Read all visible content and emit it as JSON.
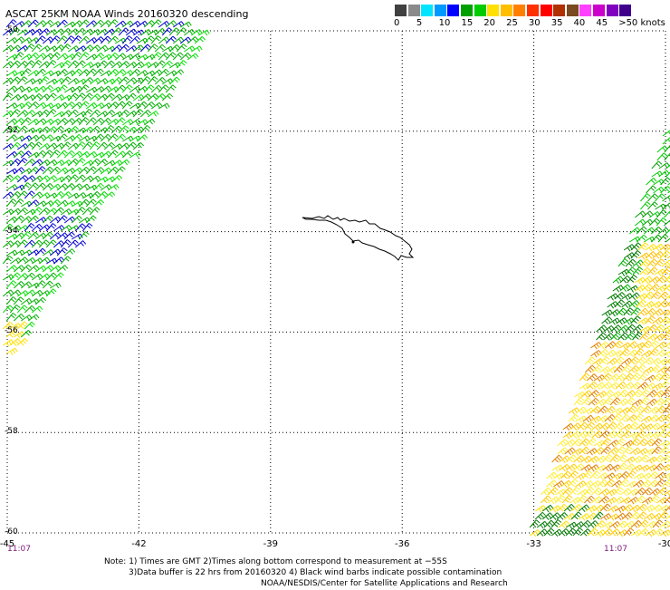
{
  "title": "ASCAT 25KM NOAA Winds 20160320 descending",
  "scale": {
    "labels": [
      "0",
      "5",
      "10",
      "15",
      "20",
      "25",
      "30",
      "35",
      "40",
      "45",
      ">50 knots"
    ],
    "colors": [
      "#404040",
      "#8a8a8a",
      "#00e5ff",
      "#0099ff",
      "#0000ff",
      "#00a000",
      "#00cc00",
      "#ffe000",
      "#ffbf00",
      "#ff8000",
      "#ff3000",
      "#ff0000",
      "#b03000",
      "#7a4a20",
      "#ff40ff",
      "#cc00cc",
      "#8000c0",
      "#40008c"
    ]
  },
  "map": {
    "lon_range": [
      -45,
      -30
    ],
    "lat_range": [
      -60,
      -50
    ],
    "x_ticks": [
      "-45",
      "-42",
      "-39",
      "-36",
      "-33",
      "-30"
    ],
    "y_ticks": [
      "-50",
      "-52",
      "-54",
      "-56",
      "-58",
      "-60"
    ],
    "grid": "dotted"
  },
  "swaths": [
    {
      "side": "west",
      "time": "11:07",
      "dominant_speed_knots": "10-20",
      "colors": [
        "green",
        "blue"
      ]
    },
    {
      "side": "east",
      "time": "11:07",
      "dominant_speed_knots": "15-30",
      "colors": [
        "green",
        "yellow",
        "orange"
      ]
    }
  ],
  "note": {
    "line1": "Note: 1) Times are GMT 2)Times along bottom correspond to measurement at −55S",
    "line2": "3)Data buffer is 22 hrs from 20160320 4) Black wind barbs indicate possible contamination",
    "line3": "NOAA/NESDIS/Center for Satellite Applications and Research"
  }
}
